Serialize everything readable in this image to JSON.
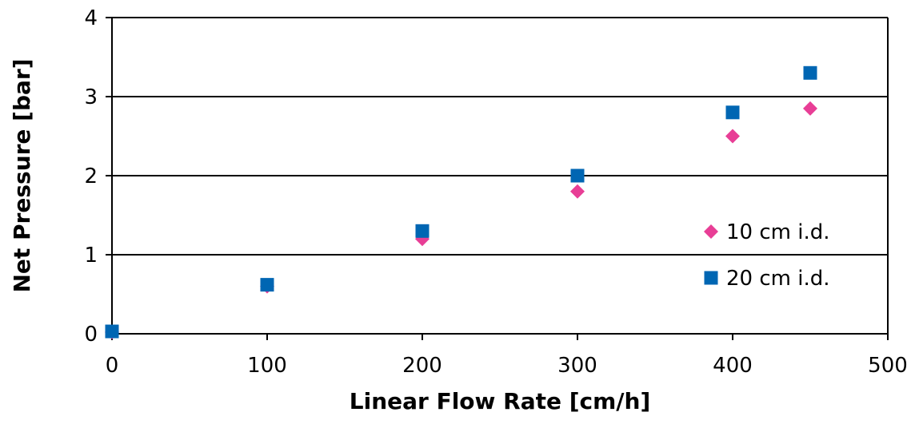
{
  "chart_data": {
    "type": "scatter",
    "title": "",
    "xlabel": "Linear Flow Rate [cm/h]",
    "ylabel": "Net Pressure [bar]",
    "xlim": [
      0,
      500
    ],
    "ylim": [
      0,
      4
    ],
    "xticks": [
      0,
      100,
      200,
      300,
      400,
      500
    ],
    "yticks": [
      0,
      1,
      2,
      3,
      4
    ],
    "grid": "horizontal",
    "legend_position": "inside-right",
    "series": [
      {
        "name": "10 cm i.d.",
        "marker": "diamond",
        "color": "#E83E96",
        "x": [
          0,
          100,
          200,
          300,
          400,
          450
        ],
        "y": [
          0.02,
          0.6,
          1.2,
          1.8,
          2.5,
          2.85
        ]
      },
      {
        "name": "20 cm i.d.",
        "marker": "square",
        "color": "#0066B3",
        "x": [
          0,
          100,
          200,
          300,
          400,
          450
        ],
        "y": [
          0.03,
          0.62,
          1.3,
          2.0,
          2.8,
          3.3
        ]
      }
    ]
  }
}
